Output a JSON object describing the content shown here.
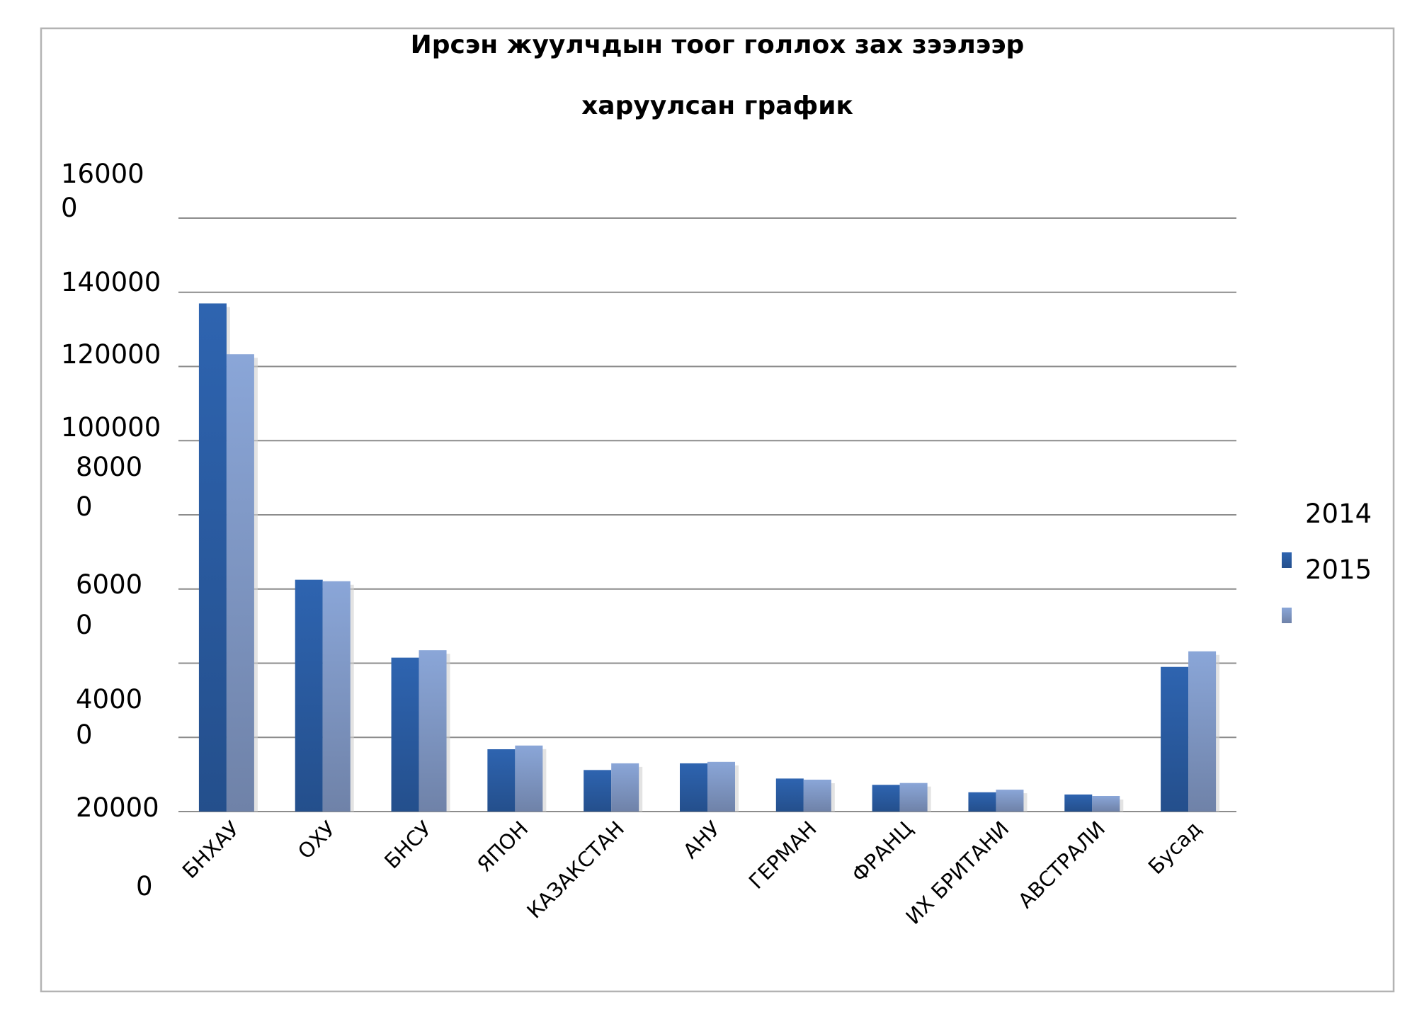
{
  "chart_data": {
    "type": "bar",
    "title": "Ирсэн жуулчдын тоог голлох зах зээлээр",
    "subtitle": "харуулсан график",
    "categories": [
      "БНХАУ",
      "ОХУ",
      "БНСУ",
      "ЯПОН",
      "КАЗАКСТАН",
      "АНУ",
      "ГЕРМАН",
      "ФРАНЦ",
      "ИХ БРИТАНИ",
      "АВСТРАЛИ",
      "Бусад"
    ],
    "series": [
      {
        "name": "2014",
        "color": "#2e64b0",
        "values": [
          137000,
          62500,
          41500,
          16800,
          11200,
          13000,
          8900,
          7200,
          5200,
          4600,
          39000
        ]
      },
      {
        "name": "2015",
        "color": "#8aa6d8",
        "values": [
          123300,
          62100,
          43500,
          17800,
          13000,
          13400,
          8600,
          7700,
          5900,
          4200,
          43200
        ]
      }
    ],
    "ylim": [
      0,
      160000
    ],
    "ytick_labels": [
      {
        "value": 160000,
        "lines": [
          "16000",
          "0"
        ]
      },
      {
        "value": 140000,
        "lines": [
          "140000"
        ]
      },
      {
        "value": 120000,
        "lines": [
          "120000"
        ]
      },
      {
        "value": 100000,
        "lines": [
          "100000"
        ]
      },
      {
        "value": 80000,
        "lines": [
          "8000",
          "0"
        ]
      },
      {
        "value": 60000,
        "lines": [
          "6000",
          "0"
        ]
      },
      {
        "value": 40000,
        "lines": [
          "4000",
          "0"
        ]
      },
      {
        "value": 20000,
        "lines": [
          "20000"
        ]
      },
      {
        "value": 0,
        "lines": [
          "0"
        ]
      }
    ],
    "grid": true,
    "legend_position": "right",
    "legend_entries": [
      "2014",
      "2015"
    ]
  }
}
